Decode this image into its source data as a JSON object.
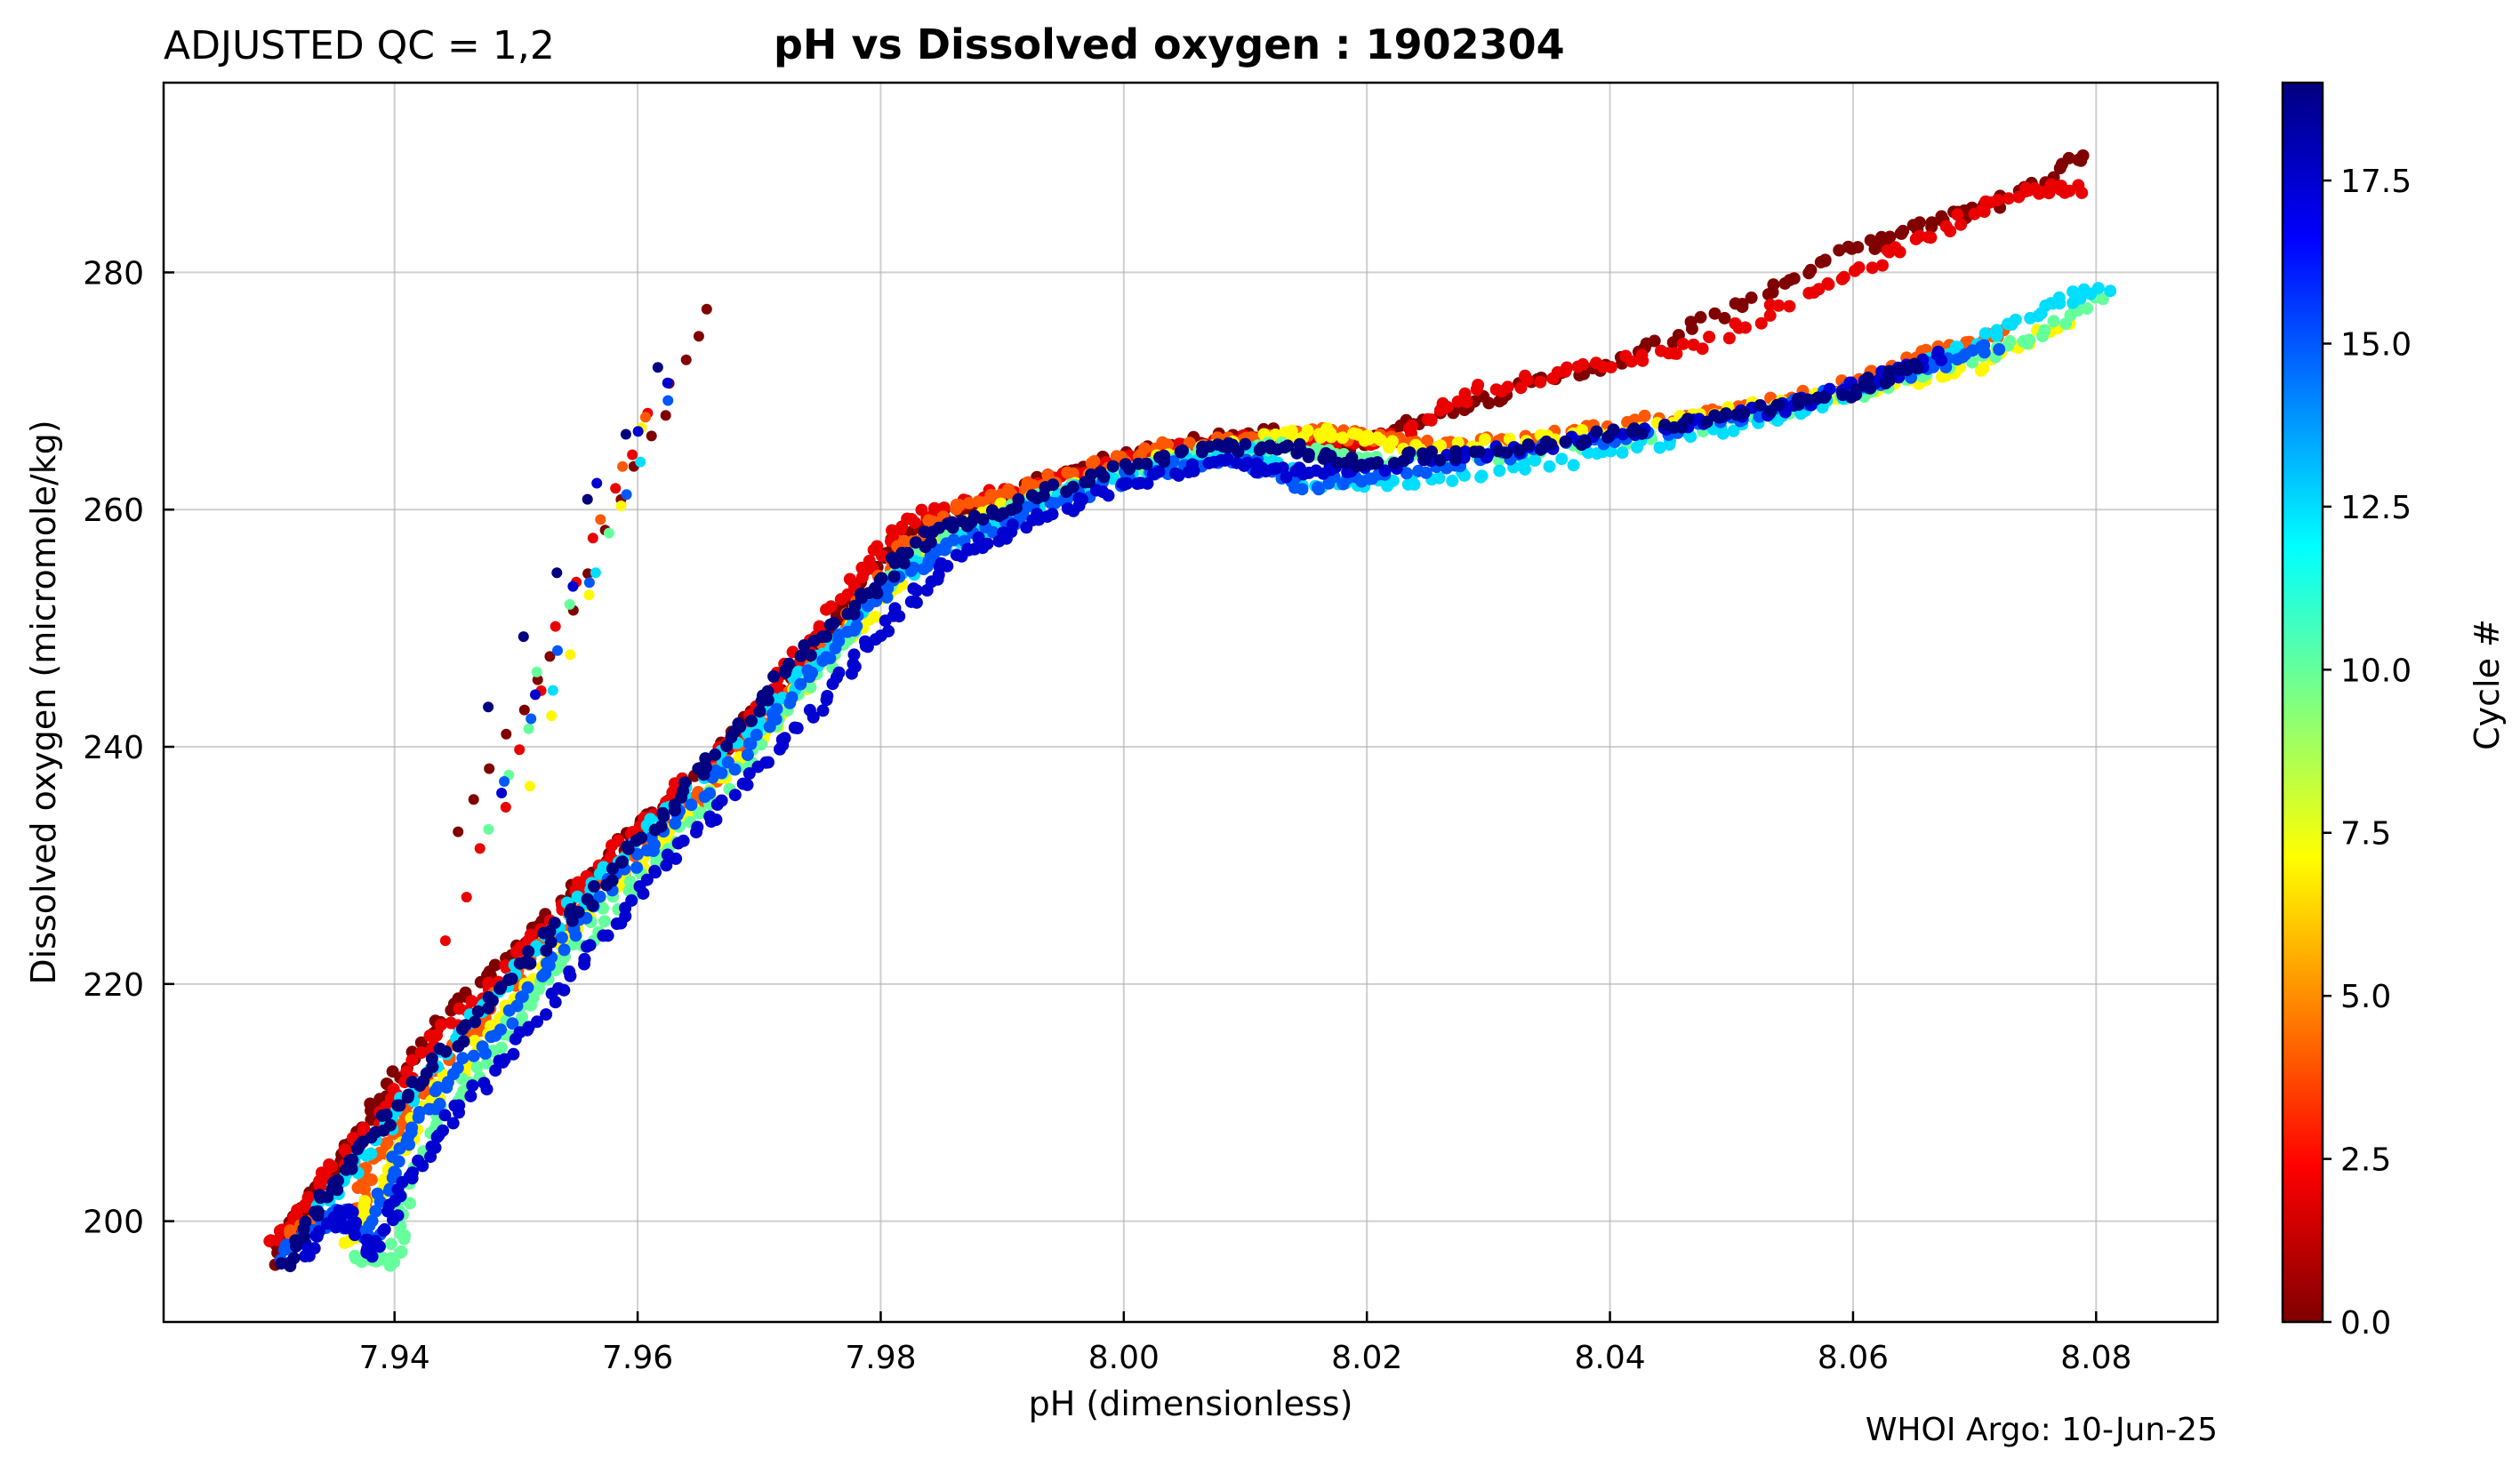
{
  "qc_label": "ADJUSTED QC = 1,2",
  "title": "pH vs Dissolved oxygen : 1902304",
  "credit": "WHOI Argo: 10-Jun-25",
  "chart_data": {
    "type": "scatter",
    "title": "pH vs Dissolved oxygen : 1902304",
    "xlabel": "pH  (dimensionless)",
    "ylabel": "Dissolved oxygen  (micromole/kg)",
    "xlim": [
      7.921,
      8.09
    ],
    "ylim": [
      191.5,
      296
    ],
    "x_ticks": [
      7.94,
      7.96,
      7.98,
      8.0,
      8.02,
      8.04,
      8.06,
      8.08
    ],
    "x_tick_labels": [
      "7.94",
      "7.96",
      "7.98",
      "8.00",
      "8.02",
      "8.04",
      "8.06",
      "8.08"
    ],
    "y_ticks": [
      200,
      220,
      240,
      260,
      280
    ],
    "y_tick_labels": [
      "200",
      "220",
      "240",
      "260",
      "280"
    ],
    "grid": true,
    "colorbar": {
      "label": "Cycle #",
      "range": [
        0,
        19
      ],
      "ticks": [
        0,
        2.5,
        5,
        7.5,
        10,
        12.5,
        15,
        17.5
      ],
      "tick_labels": [
        "0.0",
        "2.5",
        "5.0",
        "7.5",
        "10.0",
        "12.5",
        "15.0",
        "17.5"
      ],
      "colormap": "jet_reversed",
      "stops": [
        "#800000",
        "#ff0000",
        "#ff8000",
        "#ffff00",
        "#80ff80",
        "#00ffff",
        "#0080ff",
        "#0000ff",
        "#000080"
      ]
    },
    "series": [
      {
        "cycle": 0,
        "points": [
          [
            7.93,
            196.5
          ],
          [
            7.933,
            202
          ],
          [
            7.936,
            206
          ],
          [
            7.94,
            212
          ],
          [
            7.946,
            219
          ],
          [
            7.952,
            225
          ],
          [
            7.958,
            231
          ],
          [
            7.964,
            237
          ],
          [
            7.97,
            243
          ],
          [
            7.975,
            249
          ],
          [
            7.98,
            256
          ],
          [
            7.984,
            259
          ],
          [
            7.99,
            261
          ],
          [
            7.996,
            263.5
          ],
          [
            8.004,
            265.5
          ],
          [
            8.012,
            266.5
          ],
          [
            8.018,
            265
          ],
          [
            8.025,
            268
          ],
          [
            8.032,
            270
          ],
          [
            8.042,
            273
          ],
          [
            8.052,
            278
          ],
          [
            8.06,
            282
          ],
          [
            8.066,
            284
          ],
          [
            8.072,
            286
          ],
          [
            8.08,
            290.5
          ]
        ],
        "spur": [
          [
            7.945,
            233
          ],
          [
            7.949,
            241
          ],
          [
            7.953,
            248
          ],
          [
            7.957,
            258
          ],
          [
            7.961,
            266
          ],
          [
            7.964,
            273
          ],
          [
            7.967,
            278.5
          ]
        ]
      },
      {
        "cycle": 2,
        "points": [
          [
            7.93,
            198
          ],
          [
            7.934,
            203
          ],
          [
            7.938,
            208
          ],
          [
            7.943,
            215
          ],
          [
            7.949,
            221
          ],
          [
            7.955,
            228
          ],
          [
            7.961,
            234
          ],
          [
            7.967,
            240
          ],
          [
            7.972,
            246
          ],
          [
            7.978,
            254
          ],
          [
            7.982,
            259
          ],
          [
            7.988,
            261
          ],
          [
            7.995,
            262.5
          ],
          [
            8.003,
            265
          ],
          [
            8.01,
            266
          ],
          [
            8.016,
            265.5
          ],
          [
            8.022,
            266
          ],
          [
            8.029,
            270
          ],
          [
            8.038,
            272
          ],
          [
            8.048,
            274
          ],
          [
            8.058,
            279
          ],
          [
            8.066,
            283
          ],
          [
            8.074,
            287
          ],
          [
            8.079,
            287
          ]
        ],
        "spur": [
          [
            7.944,
            224
          ],
          [
            7.949,
            235
          ],
          [
            7.953,
            250
          ],
          [
            7.958,
            262
          ],
          [
            7.962,
            271
          ]
        ]
      },
      {
        "cycle": 4,
        "points": [
          [
            7.931,
            199
          ],
          [
            7.937,
            201
          ],
          [
            7.938,
            205
          ],
          [
            7.941,
            209
          ],
          [
            7.946,
            216
          ],
          [
            7.952,
            223
          ],
          [
            7.958,
            229
          ],
          [
            7.965,
            236
          ],
          [
            7.971,
            243
          ],
          [
            7.977,
            250
          ],
          [
            7.982,
            257
          ],
          [
            7.987,
            260.5
          ],
          [
            7.994,
            262.5
          ],
          [
            8.002,
            265
          ],
          [
            8.01,
            266
          ],
          [
            8.017,
            266.5
          ],
          [
            8.024,
            265.5
          ],
          [
            8.034,
            266
          ],
          [
            8.046,
            268
          ],
          [
            8.058,
            270
          ],
          [
            8.066,
            273
          ],
          [
            8.073,
            275
          ]
        ],
        "spur": [
          [
            7.957,
            259
          ],
          [
            7.962,
            272
          ]
        ]
      },
      {
        "cycle": 7,
        "points": [
          [
            7.936,
            198
          ],
          [
            7.939,
            203
          ],
          [
            7.942,
            209
          ],
          [
            7.947,
            215
          ],
          [
            7.953,
            222
          ],
          [
            7.959,
            229
          ],
          [
            7.966,
            236
          ],
          [
            7.972,
            243
          ],
          [
            7.978,
            250
          ],
          [
            7.983,
            256
          ],
          [
            7.988,
            259.5
          ],
          [
            7.996,
            262
          ],
          [
            8.004,
            264.5
          ],
          [
            8.012,
            266
          ],
          [
            8.017,
            266.5
          ],
          [
            8.024,
            265
          ],
          [
            8.036,
            266
          ],
          [
            8.048,
            268
          ],
          [
            8.06,
            270
          ],
          [
            8.07,
            272
          ],
          [
            8.078,
            276
          ]
        ],
        "spur": [
          [
            7.951,
            237
          ],
          [
            7.956,
            253
          ],
          [
            7.963,
            274
          ]
        ]
      },
      {
        "cycle": 10,
        "points": [
          [
            7.937,
            197
          ],
          [
            7.94,
            196.5
          ],
          [
            7.941,
            203
          ],
          [
            7.944,
            209
          ],
          [
            7.949,
            216
          ],
          [
            7.955,
            223
          ],
          [
            7.961,
            230
          ],
          [
            7.968,
            238
          ],
          [
            7.974,
            245
          ],
          [
            7.979,
            252
          ],
          [
            7.984,
            257
          ],
          [
            7.99,
            260
          ],
          [
            7.998,
            262.5
          ],
          [
            8.006,
            264.5
          ],
          [
            8.014,
            265.5
          ],
          [
            8.02,
            264
          ],
          [
            8.03,
            264.5
          ],
          [
            8.042,
            266
          ],
          [
            8.054,
            268
          ],
          [
            8.064,
            271
          ],
          [
            8.074,
            274
          ],
          [
            8.081,
            278.5
          ]
        ],
        "spur": [
          [
            7.948,
            233
          ],
          [
            7.952,
            246
          ],
          [
            7.96,
            264
          ]
        ]
      },
      {
        "cycle": 12.5,
        "points": [
          [
            7.934,
            201
          ],
          [
            7.938,
            206
          ],
          [
            7.944,
            214
          ],
          [
            7.95,
            221
          ],
          [
            7.956,
            228
          ],
          [
            7.963,
            235
          ],
          [
            7.97,
            242
          ],
          [
            7.976,
            249
          ],
          [
            7.981,
            254
          ],
          [
            7.987,
            258
          ],
          [
            7.994,
            261
          ],
          [
            8.002,
            263.5
          ],
          [
            8.01,
            265
          ],
          [
            8.016,
            262
          ],
          [
            8.024,
            262.5
          ],
          [
            8.036,
            264
          ],
          [
            8.048,
            266.5
          ],
          [
            8.058,
            269
          ],
          [
            8.068,
            273
          ],
          [
            8.076,
            277
          ],
          [
            8.081,
            279
          ]
        ],
        "spur": [
          [
            7.953,
            245
          ],
          [
            7.964,
            273
          ]
        ]
      },
      {
        "cycle": 15,
        "points": [
          [
            7.931,
            197
          ],
          [
            7.935,
            201
          ],
          [
            7.938,
            198
          ],
          [
            7.94,
            205
          ],
          [
            7.944,
            211
          ],
          [
            7.95,
            218
          ],
          [
            7.956,
            226
          ],
          [
            7.962,
            233
          ],
          [
            7.969,
            240
          ],
          [
            7.975,
            247
          ],
          [
            7.98,
            253
          ],
          [
            7.986,
            257
          ],
          [
            7.993,
            260
          ],
          [
            8.001,
            263
          ],
          [
            8.009,
            264.5
          ],
          [
            8.015,
            262
          ],
          [
            8.022,
            263
          ],
          [
            8.034,
            265
          ],
          [
            8.046,
            267
          ],
          [
            8.056,
            269
          ],
          [
            8.066,
            272
          ],
          [
            8.072,
            274
          ]
        ],
        "spur": [
          [
            7.949,
            237
          ],
          [
            7.956,
            254
          ],
          [
            7.966,
            277
          ]
        ]
      },
      {
        "cycle": 17.5,
        "points": [
          [
            7.932,
            196.5
          ],
          [
            7.936,
            201
          ],
          [
            7.938,
            197
          ],
          [
            7.941,
            203
          ],
          [
            7.945,
            209
          ],
          [
            7.951,
            216
          ],
          [
            7.957,
            224
          ],
          [
            7.963,
            231
          ],
          [
            7.97,
            238
          ],
          [
            7.976,
            245
          ],
          [
            7.981,
            251
          ],
          [
            7.986,
            256
          ],
          [
            7.992,
            259
          ],
          [
            8.0,
            262
          ],
          [
            8.008,
            264
          ],
          [
            8.014,
            263
          ],
          [
            8.02,
            263.5
          ],
          [
            8.032,
            265
          ],
          [
            8.044,
            267
          ],
          [
            8.054,
            268.5
          ],
          [
            8.062,
            271
          ],
          [
            8.068,
            273
          ]
        ],
        "spur": [
          [
            7.949,
            236
          ],
          [
            7.957,
            262
          ],
          [
            7.965,
            275
          ]
        ]
      },
      {
        "cycle": 19,
        "points": [
          [
            7.931,
            196
          ],
          [
            7.934,
            202
          ],
          [
            7.938,
            207
          ],
          [
            7.943,
            213
          ],
          [
            7.949,
            220
          ],
          [
            7.955,
            226
          ],
          [
            7.961,
            233
          ],
          [
            7.967,
            240
          ],
          [
            7.973,
            247
          ],
          [
            7.979,
            253
          ],
          [
            7.984,
            258
          ],
          [
            7.99,
            260
          ],
          [
            7.998,
            263
          ],
          [
            8.006,
            265
          ],
          [
            8.013,
            265.5
          ],
          [
            8.018,
            264
          ],
          [
            8.026,
            264.5
          ],
          [
            8.038,
            266
          ],
          [
            8.05,
            268
          ],
          [
            8.06,
            270
          ],
          [
            8.066,
            272.5
          ]
        ],
        "spur": [
          [
            7.948,
            243
          ],
          [
            7.956,
            261
          ],
          [
            7.965,
            277
          ]
        ]
      }
    ]
  }
}
